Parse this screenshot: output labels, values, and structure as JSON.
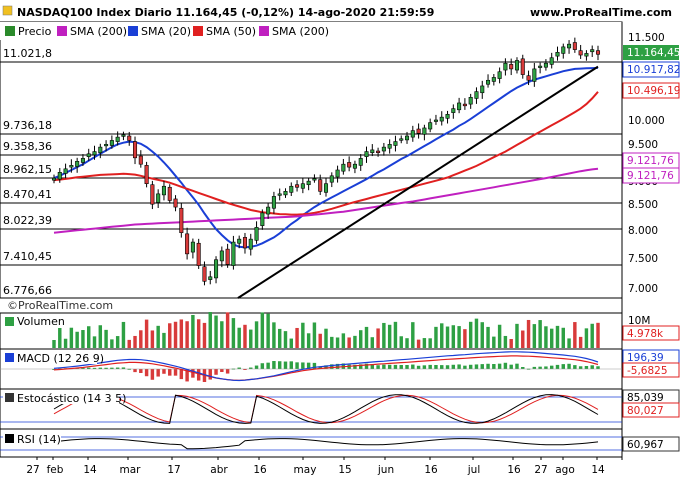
{
  "header": {
    "title": "NASDAQ100 Index Diario 11.164,45 (-0,12%) 14-ago-2020 21:59:59",
    "site": "www.ProRealTime.com"
  },
  "legend_main": [
    {
      "label": "Precio",
      "color": "#2a8a2a"
    },
    {
      "label": "SMA (200)",
      "color": "#c020c0"
    },
    {
      "label": "SMA (20)",
      "color": "#1a3fd6"
    },
    {
      "label": "SMA (50)",
      "color": "#e02020"
    },
    {
      "label": "SMA (200)",
      "color": "#c020c0"
    }
  ],
  "watermark": "©ProRealTime.com",
  "colors": {
    "up_candle": "#2ea043",
    "down_candle": "#d83a3a",
    "sma20": "#1a3fd6",
    "sma50": "#e02020",
    "sma200": "#c020c0",
    "trendline": "#000000",
    "volume": "#2ea043",
    "volume_down": "#d83a3a"
  },
  "price_axis": {
    "ticks": [
      "11.500",
      "10.000",
      "9.500",
      "9.000",
      "8.500",
      "8.000",
      "7.500",
      "7.000"
    ],
    "last_price": "11.164,45",
    "sma20_value": "10.917,82",
    "sma50_value": "10.496,19",
    "sma200_value_1": "9.121,76",
    "sma200_value_2": "9.121,76"
  },
  "hlines": [
    "11.021,8",
    "9.736,18",
    "9.358,36",
    "8.962,15",
    "8.470,41",
    "8.022,39",
    "7.410,45",
    "6.776,66"
  ],
  "panels": {
    "volume": {
      "label": "Volumen",
      "axis_top": "10M",
      "value": "4.978k"
    },
    "macd": {
      "label": "MACD (12 26 9)",
      "value1": "196,39",
      "value2": "-5,6825"
    },
    "stoch": {
      "label": "Estocástico (14 3 5)",
      "value1": "85,039",
      "value2": "80,027"
    },
    "rsi": {
      "label": "RSI (14)",
      "value": "60,967"
    }
  },
  "x_axis": [
    "27",
    "feb",
    "14",
    "mar",
    "17",
    "abr",
    "16",
    "may",
    "15",
    "jun",
    "16",
    "jul",
    "16",
    "27",
    "ago",
    "14"
  ],
  "chart_data": {
    "type": "candlestick",
    "title": "NASDAQ100 Index Diario 11.164,45 (-0,12%) 14-ago-2020 21:59:59",
    "period": {
      "start": "2020-01-27",
      "end": "2020-08-14",
      "interval": "daily"
    },
    "y_range": [
      6700,
      11700
    ],
    "x_labels": [
      "27",
      "feb",
      "14",
      "mar",
      "17",
      "abr",
      "16",
      "may",
      "15",
      "jun",
      "16",
      "jul",
      "16",
      "27",
      "ago",
      "14"
    ],
    "close_approx": [
      8960,
      9060,
      9120,
      9180,
      9250,
      9300,
      9380,
      9420,
      9500,
      9550,
      9620,
      9680,
      9720,
      9620,
      9310,
      9200,
      8850,
      8450,
      8650,
      8800,
      8520,
      8400,
      7960,
      7600,
      7800,
      7400,
      7120,
      7200,
      7500,
      7650,
      7420,
      7800,
      7850,
      7700,
      7850,
      8050,
      8300,
      8400,
      8600,
      8650,
      8700,
      8800,
      8780,
      8850,
      8900,
      8950,
      8700,
      8850,
      9000,
      9100,
      9200,
      9150,
      9200,
      9300,
      9420,
      9450,
      9400,
      9500,
      9550,
      9600,
      9650,
      9700,
      9800,
      9750,
      9850,
      9950,
      10000,
      10050,
      10100,
      10200,
      10300,
      10250,
      10400,
      10500,
      10600,
      10700,
      10750,
      10850,
      11000,
      10900,
      11050,
      10800,
      10700,
      10900,
      10950,
      11000,
      11100,
      11200,
      11300,
      11350,
      11250,
      11150,
      11180,
      11250,
      11164
    ],
    "series": [
      {
        "name": "SMA (20)",
        "values": [
          8960,
          9000,
          9050,
          9100,
          9150,
          9200,
          9260,
          9320,
          9380,
          9440,
          9500,
          9550,
          9580,
          9600,
          9590,
          9560,
          9500,
          9420,
          9330,
          9230,
          9120,
          9000,
          8870,
          8720,
          8580,
          8440,
          8290,
          8150,
          8020,
          7920,
          7830,
          7760,
          7720,
          7710,
          7720,
          7740,
          7780,
          7830,
          7880,
          7950,
          8030,
          8110,
          8180,
          8260,
          8330,
          8400,
          8460,
          8520,
          8580,
          8640,
          8700,
          8760,
          8820,
          8880,
          8940,
          9000,
          9060,
          9110,
          9170,
          9230,
          9290,
          9340,
          9400,
          9460,
          9520,
          9580,
          9640,
          9700,
          9760,
          9820,
          9890,
          9950,
          10020,
          10090,
          10160,
          10230,
          10300,
          10370,
          10440,
          10510,
          10570,
          10620,
          10670,
          10710,
          10740,
          10770,
          10800,
          10830,
          10860,
          10880,
          10900,
          10905,
          10910,
          10915,
          10918
        ]
      },
      {
        "name": "SMA (50)",
        "values": [
          8920,
          8930,
          8945,
          8960,
          8975,
          8985,
          8995,
          9005,
          9015,
          9020,
          9025,
          9030,
          9035,
          9030,
          9020,
          9000,
          8975,
          8950,
          8925,
          8900,
          8870,
          8830,
          8790,
          8750,
          8710,
          8670,
          8630,
          8590,
          8550,
          8510,
          8470,
          8440,
          8410,
          8380,
          8350,
          8330,
          8310,
          8300,
          8290,
          8280,
          8275,
          8270,
          8270,
          8275,
          8285,
          8300,
          8320,
          8345,
          8370,
          8400,
          8430,
          8460,
          8490,
          8520,
          8550,
          8580,
          8610,
          8640,
          8670,
          8700,
          8730,
          8760,
          8790,
          8820,
          8850,
          8880,
          8910,
          8940,
          8970,
          9010,
          9050,
          9090,
          9130,
          9170,
          9220,
          9270,
          9320,
          9370,
          9420,
          9480,
          9540,
          9600,
          9660,
          9720,
          9780,
          9840,
          9900,
          9960,
          10020,
          10080,
          10140,
          10200,
          10280,
          10380,
          10496
        ]
      },
      {
        "name": "SMA (200)",
        "values": [
          7960,
          7970,
          7980,
          7990,
          8000,
          8010,
          8020,
          8030,
          8040,
          8050,
          8060,
          8070,
          8080,
          8090,
          8100,
          8105,
          8110,
          8115,
          8120,
          8125,
          8130,
          8135,
          8140,
          8145,
          8150,
          8155,
          8160,
          8165,
          8170,
          8175,
          8180,
          8185,
          8190,
          8195,
          8200,
          8205,
          8210,
          8215,
          8220,
          8225,
          8230,
          8235,
          8240,
          8250,
          8260,
          8270,
          8280,
          8290,
          8300,
          8310,
          8320,
          8335,
          8350,
          8365,
          8380,
          8395,
          8410,
          8425,
          8440,
          8455,
          8470,
          8485,
          8500,
          8520,
          8540,
          8560,
          8580,
          8600,
          8620,
          8640,
          8660,
          8680,
          8700,
          8720,
          8740,
          8760,
          8780,
          8800,
          8820,
          8840,
          8860,
          8880,
          8900,
          8920,
          8940,
          8960,
          8980,
          9000,
          9020,
          9040,
          9060,
          9080,
          9095,
          9110,
          9122
        ]
      }
    ],
    "trendline": {
      "from": {
        "date": "2020-03-23",
        "value": 6776.66
      },
      "to": {
        "date": "2020-08-14",
        "value": 10940
      }
    },
    "horizontal_levels": [
      11021.8,
      9736.18,
      9358.36,
      8962.15,
      8470.41,
      8022.39,
      7410.45,
      6776.66
    ],
    "indicators": {
      "volume_last": "4.978k",
      "macd": [
        196.39,
        -5.6825
      ],
      "stochastic": [
        85.039,
        80.027
      ],
      "rsi": 60.967
    }
  }
}
